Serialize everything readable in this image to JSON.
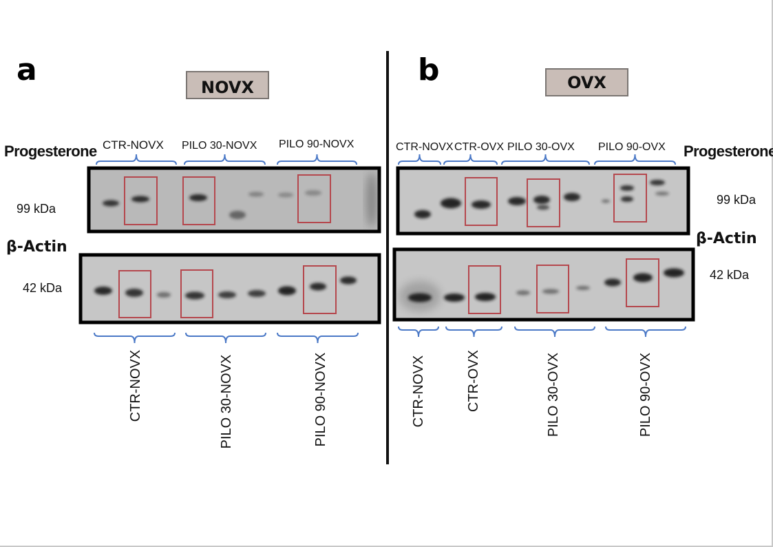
{
  "figure": {
    "panels": [
      {
        "id": "a",
        "letter": "a",
        "condition": "NOVX",
        "antibody_label": "Progesterone",
        "antibody_kda": "99 kDa",
        "actin_label": "β-Actin",
        "actin_kda": "42 kDa",
        "top_groups": [
          "CTR-NOVX",
          "PILO 30-NOVX",
          "PILO 90-NOVX"
        ],
        "bottom_groups": [
          "CTR-NOVX",
          "PILO 30-NOVX",
          "PILO 90-NOVX"
        ]
      },
      {
        "id": "b",
        "letter": "b",
        "condition": "OVX",
        "antibody_label": "Progesterone",
        "antibody_kda": "99 kDa",
        "actin_label": "β-Actin",
        "actin_kda": "42 kDa",
        "top_groups": [
          "CTR-NOVX",
          "CTR-OVX",
          "PILO 30-OVX",
          "PILO 90-OVX"
        ],
        "bottom_groups": [
          "CTR-NOVX",
          "CTR-OVX",
          "PILO 30-OVX",
          "PILO 90-OVX"
        ]
      }
    ],
    "colors": {
      "bracket": "#4a78c6",
      "highlight_box": "#b5474d",
      "condition_box_fill": "#c9bdb7",
      "blot_background": "#c6c6c6",
      "band": "#1a1a1a"
    }
  }
}
